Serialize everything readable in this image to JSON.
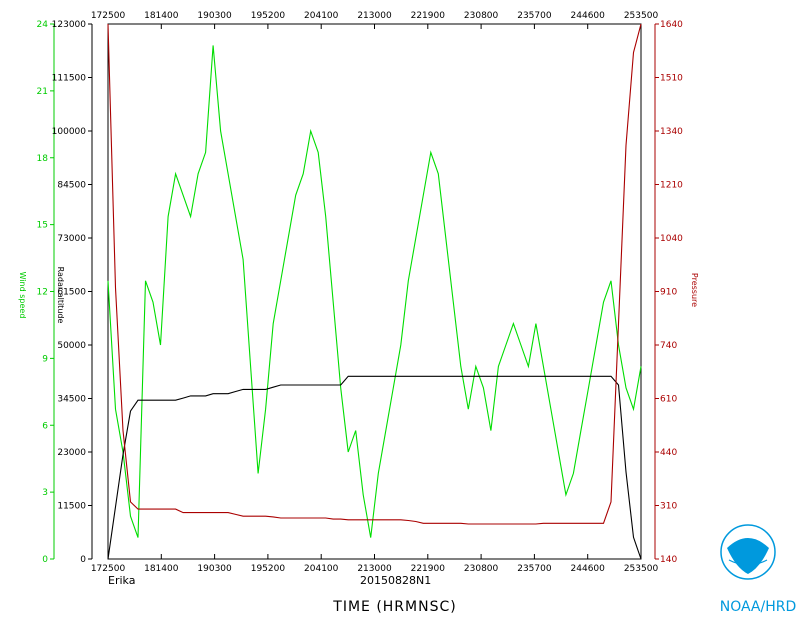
{
  "chart_data": {
    "type": "line",
    "x_ticks": [
      "172500",
      "181400",
      "190300",
      "195200",
      "204100",
      "213000",
      "221900",
      "230800",
      "235700",
      "244600",
      "253500"
    ],
    "wind_axis": {
      "label": "Wind speed",
      "ticks": [
        "0",
        "3",
        "6",
        "9",
        "12",
        "15",
        "18",
        "21",
        "24"
      ],
      "range": [
        0,
        25
      ],
      "color": "#00cc00"
    },
    "alt_axis": {
      "label": "Radar altitude",
      "ticks": [
        "0",
        "11500",
        "23000",
        "34500",
        "50000",
        "61500",
        "73000",
        "84500",
        "100000",
        "111500",
        "123000"
      ],
      "range": [
        0,
        123000
      ],
      "color": "#000000"
    },
    "pressure_axis": {
      "label": "Pressure",
      "ticks": [
        "140",
        "310",
        "440",
        "610",
        "740",
        "910",
        "1040",
        "1210",
        "1340",
        "1510",
        "1640"
      ],
      "range": [
        140,
        1640
      ],
      "color": "#aa0000"
    },
    "xlabel": "TIME (HRMNSC)",
    "storm_name": "Erika",
    "storm_id": "20150828N1",
    "credit": "NOAA/HRD",
    "series": [
      {
        "name": "Wind speed",
        "color": "#00dd00",
        "axis": "wind",
        "values": [
          13,
          7,
          5,
          2,
          1,
          13,
          12,
          10,
          16,
          18,
          17,
          16,
          18,
          19,
          24,
          20,
          18,
          16,
          14,
          9,
          4,
          7,
          11,
          13,
          15,
          17,
          18,
          20,
          19,
          16,
          12,
          8,
          5,
          6,
          3,
          1,
          4,
          6,
          8,
          10,
          13,
          15,
          17,
          19,
          18,
          15,
          12,
          9,
          7,
          9,
          8,
          6,
          9,
          10,
          11,
          10,
          9,
          11,
          9,
          7,
          5,
          3,
          4,
          6,
          8,
          10,
          12,
          13,
          10,
          8,
          7,
          9
        ]
      },
      {
        "name": "Radar altitude",
        "color": "#000000",
        "axis": "alt",
        "values": [
          0,
          12000,
          24000,
          34000,
          36500,
          36500,
          36500,
          36500,
          36500,
          36500,
          37000,
          37500,
          37500,
          37500,
          38000,
          38000,
          38000,
          38500,
          39000,
          39000,
          39000,
          39000,
          39500,
          40000,
          40000,
          40000,
          40000,
          40000,
          40000,
          40000,
          40000,
          40000,
          42000,
          42000,
          42000,
          42000,
          42000,
          42000,
          42000,
          42000,
          42000,
          42000,
          42000,
          42000,
          42000,
          42000,
          42000,
          42000,
          42000,
          42000,
          42000,
          42000,
          42000,
          42000,
          42000,
          42000,
          42000,
          42000,
          42000,
          42000,
          42000,
          42000,
          42000,
          42000,
          42000,
          42000,
          42000,
          42000,
          40000,
          20000,
          5000,
          0
        ]
      },
      {
        "name": "Pressure",
        "color": "#aa0000",
        "axis": "pressure",
        "values": [
          1640,
          900,
          500,
          300,
          280,
          280,
          280,
          280,
          280,
          280,
          270,
          270,
          270,
          270,
          270,
          270,
          270,
          265,
          260,
          260,
          260,
          260,
          258,
          255,
          255,
          255,
          255,
          255,
          255,
          255,
          252,
          252,
          250,
          250,
          250,
          250,
          250,
          250,
          250,
          250,
          248,
          245,
          240,
          240,
          240,
          240,
          240,
          240,
          238,
          238,
          238,
          238,
          238,
          238,
          238,
          238,
          238,
          238,
          240,
          240,
          240,
          240,
          240,
          240,
          240,
          240,
          240,
          300,
          800,
          1300,
          1560,
          1640
        ]
      }
    ]
  }
}
